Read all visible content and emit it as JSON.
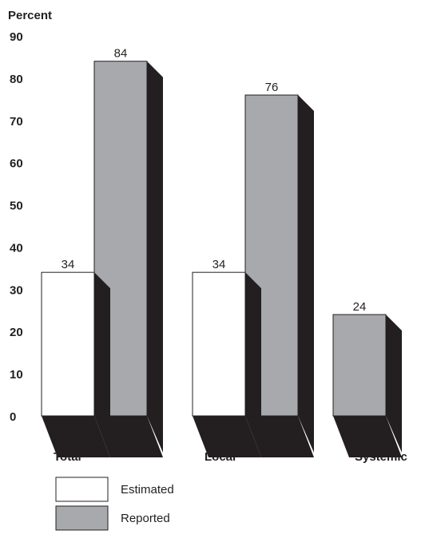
{
  "chart_data": {
    "type": "bar",
    "ylabel": "Percent",
    "ylim": [
      0,
      90
    ],
    "yticks": [
      0,
      10,
      20,
      30,
      40,
      50,
      60,
      70,
      80,
      90
    ],
    "categories": [
      "Total",
      "Local",
      "Systemic"
    ],
    "series": [
      {
        "name": "Estimated",
        "values": [
          34,
          34,
          null
        ],
        "color": "#ffffff"
      },
      {
        "name": "Reported",
        "values": [
          84,
          76,
          24
        ],
        "color": "#a7a9ac"
      }
    ],
    "shadow_color": "#231f20",
    "legend_position": "bottom-left",
    "grid": false,
    "style": "3d-shadow"
  }
}
